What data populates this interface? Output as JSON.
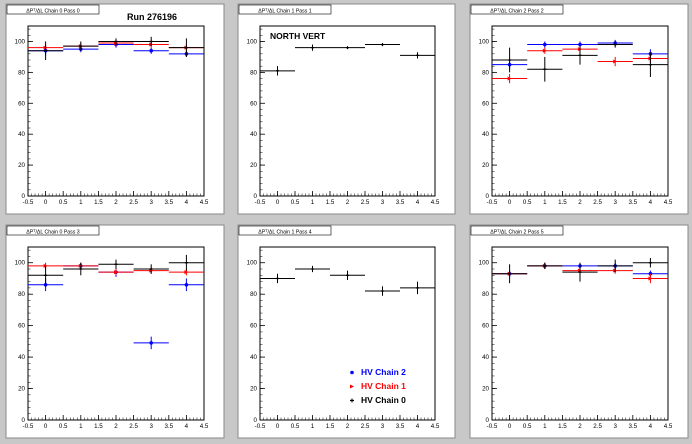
{
  "window": {
    "run_label": "Run 276196"
  },
  "colors": {
    "chain2": "#0000ff",
    "chain1": "#ff0000",
    "chain0": "#000000",
    "frame": "#ffffff",
    "canvas": "#c8c8c8"
  },
  "legend": [
    {
      "label": "HV Chain 2",
      "color": "#0000ff"
    },
    {
      "label": "HV Chain 1",
      "color": "#ff0000"
    },
    {
      "label": "HV Chain 0",
      "color": "#000000"
    }
  ],
  "chart_data": [
    {
      "type": "scatter",
      "title": "ΔPᵀ/ΔL Chain 0 Pass 0",
      "annotation": "Run 276196",
      "x_ticks": [
        "-0.5",
        "0",
        "0.5",
        "1",
        "1.5",
        "2",
        "2.5",
        "3",
        "3.5",
        "4",
        "4.5"
      ],
      "xlim": [
        -0.5,
        4.5
      ],
      "y_ticks": [
        "0",
        "20",
        "40",
        "60",
        "80",
        "100"
      ],
      "ylim": [
        0,
        110
      ],
      "series": [
        {
          "color": "#0000ff",
          "x": [
            0,
            1,
            2,
            3,
            4
          ],
          "y": [
            94,
            95,
            98,
            94,
            92
          ],
          "yerr": [
            3,
            2,
            2,
            2,
            2
          ]
        },
        {
          "color": "#ff0000",
          "x": [
            0,
            1,
            2,
            3,
            4
          ],
          "y": [
            96,
            97,
            99,
            98,
            96
          ],
          "yerr": [
            2,
            2,
            2,
            2,
            2
          ]
        },
        {
          "color": "#000000",
          "x": [
            0,
            1,
            2,
            3,
            4
          ],
          "y": [
            94,
            97,
            100,
            100,
            96
          ],
          "yerr": [
            6,
            3,
            2,
            3,
            6
          ]
        }
      ]
    },
    {
      "type": "scatter",
      "title": "ΔPᵀ/ΔL Chain 1 Pass 1",
      "annotation": "NORTH VERT",
      "x_ticks": [
        "-0.5",
        "0",
        "0.5",
        "1",
        "1.5",
        "2",
        "2.5",
        "3",
        "3.5",
        "4",
        "4.5"
      ],
      "xlim": [
        -0.5,
        4.5
      ],
      "y_ticks": [
        "0",
        "20",
        "40",
        "60",
        "80",
        "100"
      ],
      "ylim": [
        0,
        110
      ],
      "series": [
        {
          "color": "#000000",
          "x": [
            0,
            1,
            2,
            3,
            4
          ],
          "y": [
            81,
            96,
            96,
            98,
            91
          ],
          "yerr": [
            3,
            2,
            1,
            1,
            2
          ]
        }
      ]
    },
    {
      "type": "scatter",
      "title": "ΔPᵀ/ΔL Chain 2 Pass 2",
      "annotation": "",
      "x_ticks": [
        "-0.5",
        "0",
        "0.5",
        "1",
        "1.5",
        "2",
        "2.5",
        "3",
        "3.5",
        "4",
        "4.5"
      ],
      "xlim": [
        -0.5,
        4.5
      ],
      "y_ticks": [
        "0",
        "20",
        "40",
        "60",
        "80",
        "100"
      ],
      "ylim": [
        0,
        110
      ],
      "series": [
        {
          "color": "#0000ff",
          "x": [
            0,
            1,
            2,
            3,
            4
          ],
          "y": [
            85,
            98,
            98,
            99,
            92
          ],
          "yerr": [
            3,
            2,
            2,
            2,
            3
          ]
        },
        {
          "color": "#ff0000",
          "x": [
            0,
            1,
            2,
            3,
            4
          ],
          "y": [
            76,
            94,
            95,
            87,
            89
          ],
          "yerr": [
            3,
            2,
            2,
            3,
            3
          ]
        },
        {
          "color": "#000000",
          "x": [
            0,
            1,
            2,
            3,
            4
          ],
          "y": [
            88,
            82,
            91,
            98,
            85
          ],
          "yerr": [
            8,
            8,
            6,
            2,
            8
          ]
        }
      ]
    },
    {
      "type": "scatter",
      "title": "ΔPᵀ/ΔL Chain 0 Pass 3",
      "annotation": "",
      "x_ticks": [
        "-0.5",
        "0",
        "0.5",
        "1",
        "1.5",
        "2",
        "2.5",
        "3",
        "3.5",
        "4",
        "4.5"
      ],
      "xlim": [
        -0.5,
        4.5
      ],
      "y_ticks": [
        "0",
        "20",
        "40",
        "60",
        "80",
        "100"
      ],
      "ylim": [
        0,
        110
      ],
      "series": [
        {
          "color": "#0000ff",
          "x": [
            0,
            1,
            2,
            3,
            4
          ],
          "y": [
            86,
            98,
            94,
            49,
            86
          ],
          "yerr": [
            4,
            2,
            3,
            4,
            4
          ]
        },
        {
          "color": "#ff0000",
          "x": [
            0,
            1,
            2,
            3,
            4
          ],
          "y": [
            98,
            98,
            94,
            95,
            94
          ],
          "yerr": [
            2,
            2,
            2,
            2,
            2
          ]
        },
        {
          "color": "#000000",
          "x": [
            0,
            1,
            2,
            3,
            4
          ],
          "y": [
            92,
            96,
            99,
            96,
            100
          ],
          "yerr": [
            6,
            4,
            3,
            3,
            5
          ]
        }
      ]
    },
    {
      "type": "scatter",
      "title": "ΔPᵀ/ΔL Chain 1 Pass 4",
      "annotation": "",
      "x_ticks": [
        "-0.5",
        "0",
        "0.5",
        "1",
        "1.5",
        "2",
        "2.5",
        "3",
        "3.5",
        "4",
        "4.5"
      ],
      "xlim": [
        -0.5,
        4.5
      ],
      "y_ticks": [
        "0",
        "20",
        "40",
        "60",
        "80",
        "100"
      ],
      "ylim": [
        0,
        110
      ],
      "series": [
        {
          "color": "#000000",
          "x": [
            0,
            1,
            2,
            3,
            4
          ],
          "y": [
            90,
            96,
            92,
            82,
            84
          ],
          "yerr": [
            3,
            2,
            3,
            3,
            4
          ]
        }
      ]
    },
    {
      "type": "scatter",
      "title": "ΔPᵀ/ΔL Chain 2 Pass 5",
      "annotation": "",
      "x_ticks": [
        "-0.5",
        "0",
        "0.5",
        "1",
        "1.5",
        "2",
        "2.5",
        "3",
        "3.5",
        "4",
        "4.5"
      ],
      "xlim": [
        -0.5,
        4.5
      ],
      "y_ticks": [
        "0",
        "20",
        "40",
        "60",
        "80",
        "100"
      ],
      "ylim": [
        0,
        110
      ],
      "series": [
        {
          "color": "#0000ff",
          "x": [
            0,
            1,
            2,
            3,
            4
          ],
          "y": [
            93,
            98,
            98,
            98,
            93
          ],
          "yerr": [
            2,
            2,
            2,
            2,
            2
          ]
        },
        {
          "color": "#ff0000",
          "x": [
            0,
            1,
            2,
            3,
            4
          ],
          "y": [
            93,
            98,
            95,
            95,
            90
          ],
          "yerr": [
            2,
            2,
            2,
            2,
            3
          ]
        },
        {
          "color": "#000000",
          "x": [
            0,
            1,
            2,
            3,
            4
          ],
          "y": [
            93,
            98,
            94,
            98,
            100
          ],
          "yerr": [
            6,
            2,
            6,
            4,
            3
          ]
        }
      ]
    }
  ]
}
